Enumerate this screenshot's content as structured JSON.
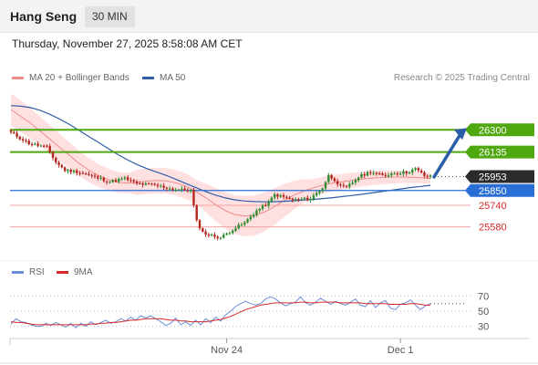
{
  "header": {
    "symbol": "Hang Seng",
    "interval": "30 MIN",
    "datetime": "Thursday, November 27, 2025 8:58:08 AM CET",
    "credit": "Research © 2025 Trading Central"
  },
  "colors": {
    "up_candle": "#2e8b2e",
    "down_candle": "#b5261e",
    "ma20": "#f08a8a",
    "band_fill": "#ffd6d6",
    "ma50": "#2f5da8",
    "resistance": "#4fa80f",
    "support": "#f2a3a3",
    "pivot": "#2a6fd6",
    "arrow": "#2a5fa8",
    "rsi": "#6a8fd8",
    "rsi_ma": "#d62a2a"
  },
  "chart_data": [
    {
      "type": "candlestick",
      "legend": [
        {
          "name": "MA 20 + Bollinger Bands",
          "color": "#f08a8a"
        },
        {
          "name": "MA 50",
          "color": "#2f5da8"
        }
      ],
      "ylim": [
        25300,
        26620
      ],
      "price_levels": [
        {
          "value": 26300,
          "label": "26300",
          "role": "resistance",
          "tag_color": "#4fa80f",
          "text_color": "#ffffff"
        },
        {
          "value": 26135,
          "label": "26135",
          "role": "resistance",
          "tag_color": "#4fa80f",
          "text_color": "#ffffff"
        },
        {
          "value": 25953,
          "label": "25953",
          "role": "last price",
          "tag_color": "#2b2b2b",
          "text_color": "#ffffff"
        },
        {
          "value": 25850,
          "label": "25850",
          "role": "pivot",
          "tag_color": "#2a6fd6",
          "text_color": "#ffffff"
        },
        {
          "value": 25740,
          "label": "25740",
          "role": "support",
          "tag_color": "",
          "text_color": "#d62a2a"
        },
        {
          "value": 25580,
          "label": "25580",
          "role": "support",
          "tag_color": "",
          "text_color": "#d62a2a"
        }
      ],
      "arrow": {
        "from": 25950,
        "to": 26300,
        "direction": "up"
      },
      "x_labels": [
        {
          "index": 72,
          "label": "Nov 24"
        },
        {
          "index": 130,
          "label": "Dec 1"
        }
      ],
      "series": [
        {
          "name": "MA 20 + Bollinger Bands",
          "values": [
            26450,
            26400,
            26350,
            26290,
            26230,
            26170,
            26110,
            26050,
            26000,
            25960,
            25930,
            25910,
            25905,
            25910,
            25920,
            25925,
            25920,
            25905,
            25880,
            25840,
            25795,
            25745,
            25700,
            25670,
            25660,
            25665,
            25690,
            25730,
            25775,
            25815,
            25845,
            25870,
            25890,
            25905,
            25915,
            25925,
            25935,
            25942,
            25947,
            25950,
            25950,
            25948,
            25945,
            25940
          ]
        },
        {
          "name": "MA 50",
          "values": [
            26480,
            26475,
            26465,
            26445,
            26415,
            26380,
            26340,
            26295,
            26250,
            26205,
            26160,
            26115,
            26075,
            26040,
            26010,
            25985,
            25960,
            25930,
            25900,
            25870,
            25840,
            25815,
            25795,
            25780,
            25772,
            25768,
            25766,
            25767,
            25770,
            25774,
            25779,
            25784,
            25790,
            25797,
            25805,
            25813,
            25822,
            25832,
            25842,
            25852,
            25862,
            25872,
            25880,
            25888
          ]
        }
      ]
    },
    {
      "type": "line",
      "legend": [
        {
          "name": "RSI",
          "color": "#6a8fd8"
        },
        {
          "name": "9MA",
          "color": "#d62a2a"
        }
      ],
      "ylim": [
        15,
        85
      ],
      "y_ticks": [
        70,
        50,
        30
      ],
      "series": [
        {
          "name": "RSI",
          "values": [
            33,
            40,
            36,
            35,
            32,
            30,
            30,
            34,
            31,
            35,
            32,
            29,
            34,
            28,
            34,
            30,
            36,
            32,
            35,
            38,
            34,
            36,
            40,
            37,
            42,
            38,
            44,
            41,
            44,
            40,
            36,
            31,
            34,
            41,
            32,
            36,
            31,
            38,
            32,
            40,
            35,
            42,
            37,
            45,
            50,
            56,
            60,
            63,
            60,
            58,
            60,
            66,
            69,
            66,
            61,
            57,
            60,
            62,
            69,
            61,
            58,
            62,
            67,
            63,
            59,
            63,
            60,
            58,
            62,
            66,
            58,
            56,
            64,
            55,
            61,
            64,
            54,
            52,
            59,
            61,
            65,
            58,
            52,
            57,
            60
          ]
        },
        {
          "name": "9MA",
          "values": [
            36,
            35,
            35,
            34,
            33,
            32,
            32,
            32,
            32,
            32,
            32,
            32,
            32,
            32,
            32,
            32,
            33,
            33,
            34,
            34,
            35,
            35,
            36,
            37,
            38,
            38,
            39,
            40,
            40,
            40,
            40,
            39,
            38,
            38,
            37,
            37,
            36,
            36,
            36,
            36,
            37,
            38,
            39,
            41,
            43,
            46,
            49,
            52,
            54,
            56,
            58,
            59,
            60,
            61,
            61,
            61,
            61,
            61,
            62,
            62,
            61,
            61,
            62,
            62,
            62,
            62,
            61,
            61,
            61,
            61,
            61,
            60,
            60,
            60,
            60,
            60,
            59,
            59,
            59,
            59,
            60,
            60,
            59,
            58,
            58
          ]
        }
      ]
    }
  ]
}
